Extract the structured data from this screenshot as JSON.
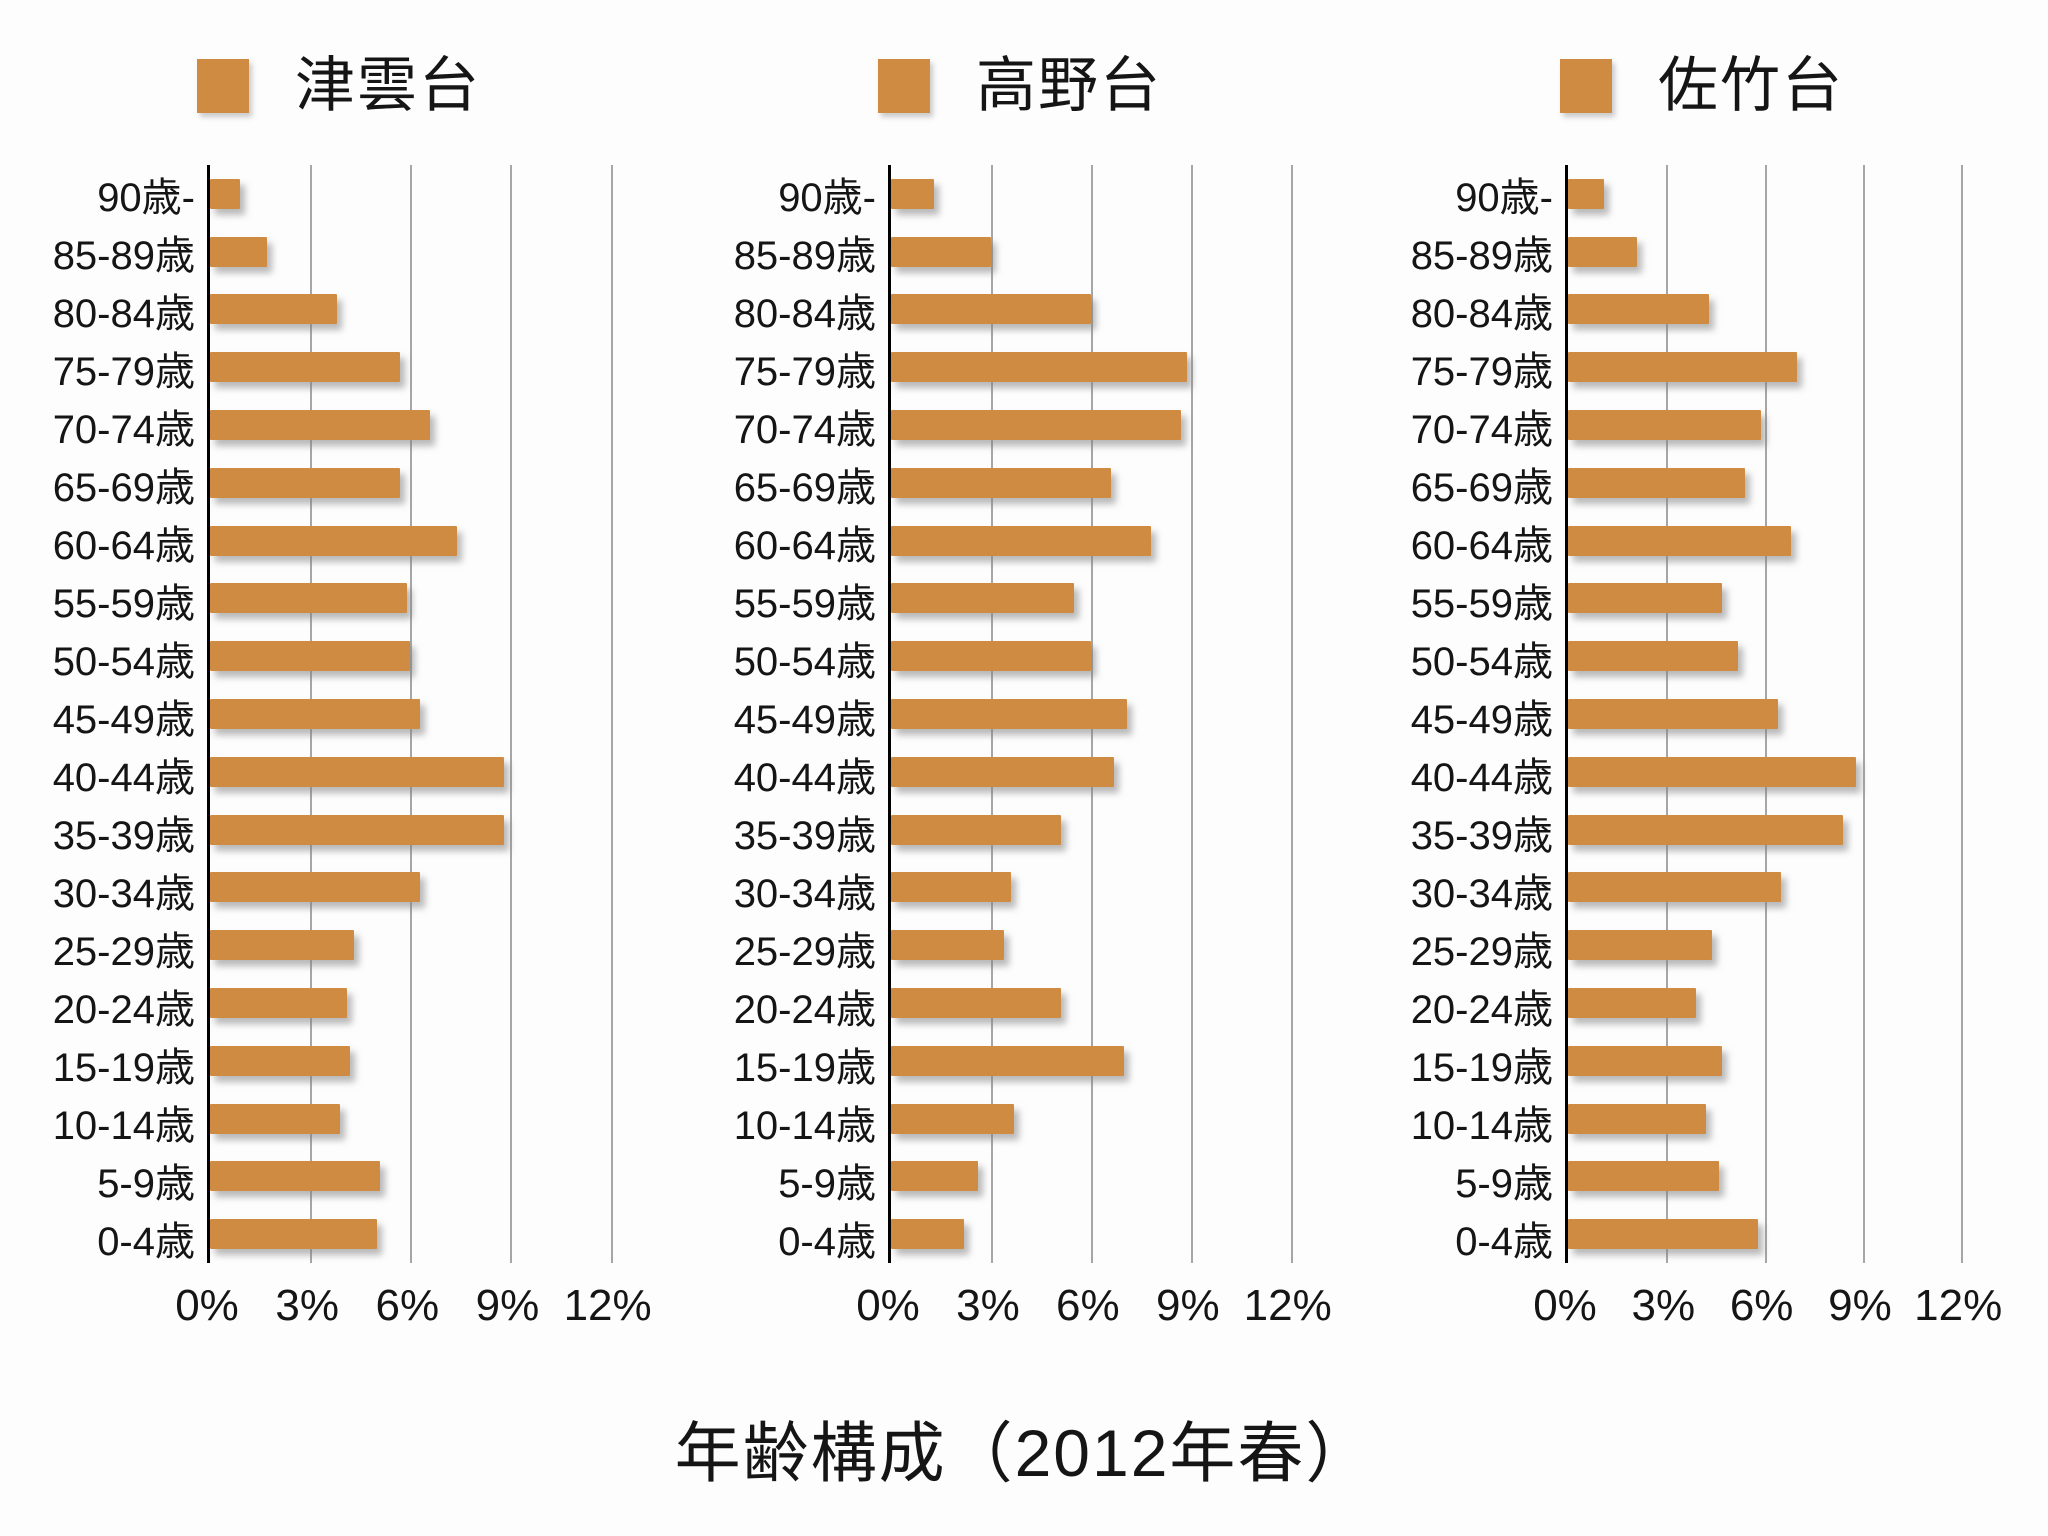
{
  "title": "年齢構成（2012年春）",
  "legend": [
    {
      "label": "津雲台"
    },
    {
      "label": "高野台"
    },
    {
      "label": "佐竹台"
    }
  ],
  "x_axis": {
    "tick_labels": [
      "0%",
      "3%",
      "6%",
      "9%",
      "12%"
    ],
    "tick_values": [
      0,
      3,
      6,
      9,
      12
    ],
    "unit": "%",
    "plot_max": 13
  },
  "categories": [
    "90歳-",
    "85-89歳",
    "80-84歳",
    "75-79歳",
    "70-74歳",
    "65-69歳",
    "60-64歳",
    "55-59歳",
    "50-54歳",
    "45-49歳",
    "40-44歳",
    "35-39歳",
    "30-34歳",
    "25-29歳",
    "20-24歳",
    "15-19歳",
    "10-14歳",
    "5-9歳",
    "0-4歳"
  ],
  "colors": {
    "bar": "#D08B42",
    "gridline": "#A6A6A6",
    "axis": "#000000",
    "text": "#151515",
    "background": "#FDFDFD"
  },
  "chart_data": {
    "type": "bar",
    "orientation": "horizontal",
    "title": "年齢構成（2012年春）",
    "categories_top_to_bottom": [
      "90歳-",
      "85-89歳",
      "80-84歳",
      "75-79歳",
      "70-74歳",
      "65-69歳",
      "60-64歳",
      "55-59歳",
      "50-54歳",
      "45-49歳",
      "40-44歳",
      "35-39歳",
      "30-34歳",
      "25-29歳",
      "20-24歳",
      "15-19歳",
      "10-14歳",
      "5-9歳",
      "0-4歳"
    ],
    "value_unit": "percent",
    "series": [
      {
        "name": "津雲台",
        "values": [
          0.9,
          1.7,
          3.8,
          5.7,
          6.6,
          5.7,
          7.4,
          5.9,
          6.0,
          6.3,
          8.8,
          8.8,
          6.3,
          4.3,
          4.1,
          4.2,
          3.9,
          5.1,
          5.0
        ]
      },
      {
        "name": "高野台",
        "values": [
          1.3,
          3.0,
          6.0,
          8.9,
          8.7,
          6.6,
          7.8,
          5.5,
          6.0,
          7.1,
          6.7,
          5.1,
          3.6,
          3.4,
          5.1,
          7.0,
          3.7,
          2.6,
          2.2
        ]
      },
      {
        "name": "佐竹台",
        "values": [
          1.1,
          2.1,
          4.3,
          7.0,
          5.9,
          5.4,
          6.8,
          4.7,
          5.2,
          6.4,
          8.8,
          8.4,
          6.5,
          4.4,
          3.9,
          4.7,
          4.2,
          4.6,
          5.8
        ]
      }
    ],
    "xlabel": "",
    "ylabel": "",
    "xlim": [
      0,
      13
    ],
    "x_ticks": [
      0,
      3,
      6,
      9,
      12
    ],
    "grid": "vertical",
    "legend_position": "top",
    "panels": "three side-by-side, one per series"
  }
}
